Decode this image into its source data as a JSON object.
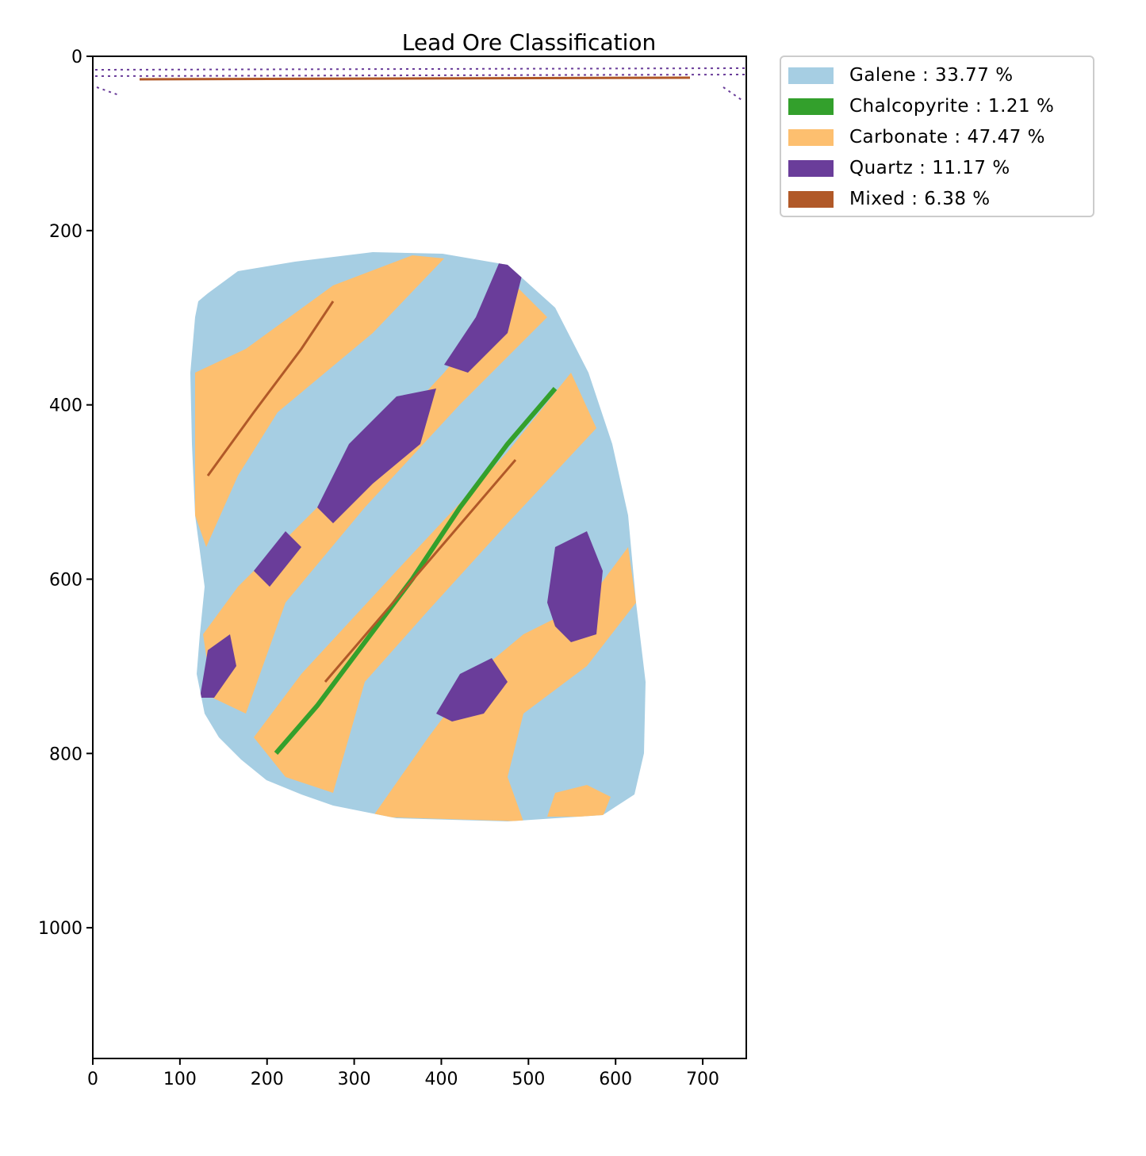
{
  "chart_data": {
    "type": "heatmap",
    "title": "Lead Ore Classification",
    "xlabel": "",
    "ylabel": "",
    "xlim": [
      0,
      750
    ],
    "ylim": [
      1150,
      0
    ],
    "x_ticks": [
      0,
      100,
      200,
      300,
      400,
      500,
      600,
      700
    ],
    "y_ticks": [
      0,
      200,
      400,
      600,
      800,
      1000
    ],
    "grid": false,
    "legend_placement": "outside-top-right",
    "classes": [
      {
        "name": "Galene : 33.77 %",
        "percent": 33.77,
        "color": "#a6cee3"
      },
      {
        "name": "Chalcopyrite : 1.21 %",
        "percent": 1.21,
        "color": "#33a02c"
      },
      {
        "name": "Carbonate : 47.47 %",
        "percent": 47.47,
        "color": "#fdbf6f"
      },
      {
        "name": "Quartz : 11.17 %",
        "percent": 11.17,
        "color": "#6a3d9a"
      },
      {
        "name": "Mixed : 6.38 %",
        "percent": 6.38,
        "color": "#b15928"
      }
    ]
  }
}
